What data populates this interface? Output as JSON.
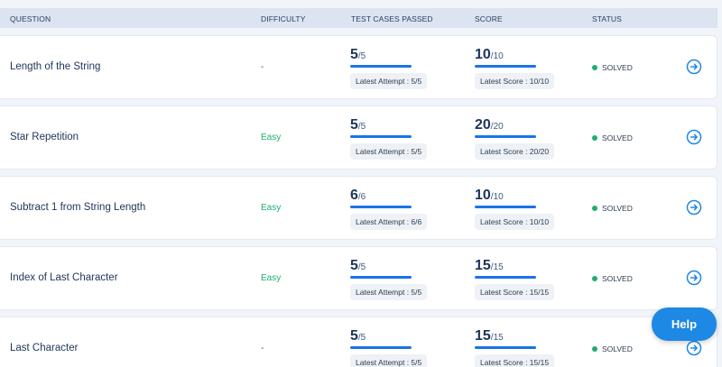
{
  "header": {
    "question": "QUESTION",
    "difficulty": "DIFFICULTY",
    "tests": "TEST CASES PASSED",
    "score": "SCORE",
    "status": "STATUS"
  },
  "rows": [
    {
      "title": "Length of the String",
      "difficulty": "-",
      "tests_passed": "5",
      "tests_total": "/5",
      "tests_attempt": "Latest Attempt : 5/5",
      "score": "10",
      "score_total": "/10",
      "score_latest": "Latest Score : 10/10",
      "status": "SOLVED"
    },
    {
      "title": "Star Repetition",
      "difficulty": "Easy",
      "tests_passed": "5",
      "tests_total": "/5",
      "tests_attempt": "Latest Attempt : 5/5",
      "score": "20",
      "score_total": "/20",
      "score_latest": "Latest Score : 20/20",
      "status": "SOLVED"
    },
    {
      "title": "Subtract 1 from String Length",
      "difficulty": "Easy",
      "tests_passed": "6",
      "tests_total": "/6",
      "tests_attempt": "Latest Attempt : 6/6",
      "score": "10",
      "score_total": "/10",
      "score_latest": "Latest Score : 10/10",
      "status": "SOLVED"
    },
    {
      "title": "Index of Last Character",
      "difficulty": "Easy",
      "tests_passed": "5",
      "tests_total": "/5",
      "tests_attempt": "Latest Attempt : 5/5",
      "score": "15",
      "score_total": "/15",
      "score_latest": "Latest Score : 15/15",
      "status": "SOLVED"
    },
    {
      "title": "Last Character",
      "difficulty": "-",
      "tests_passed": "5",
      "tests_total": "/5",
      "tests_attempt": "Latest Attempt : 5/5",
      "score": "15",
      "score_total": "/15",
      "score_latest": "Latest Score : 15/15",
      "status": "SOLVED"
    }
  ],
  "help_label": "Help",
  "icons": {
    "row_action": "arrow-right-circle-icon",
    "status": "status-dot-icon"
  },
  "colors": {
    "accent": "#1e88e5",
    "easy": "#1fae6b",
    "solved": "#1fae6b",
    "bar": "#1a73e8"
  }
}
